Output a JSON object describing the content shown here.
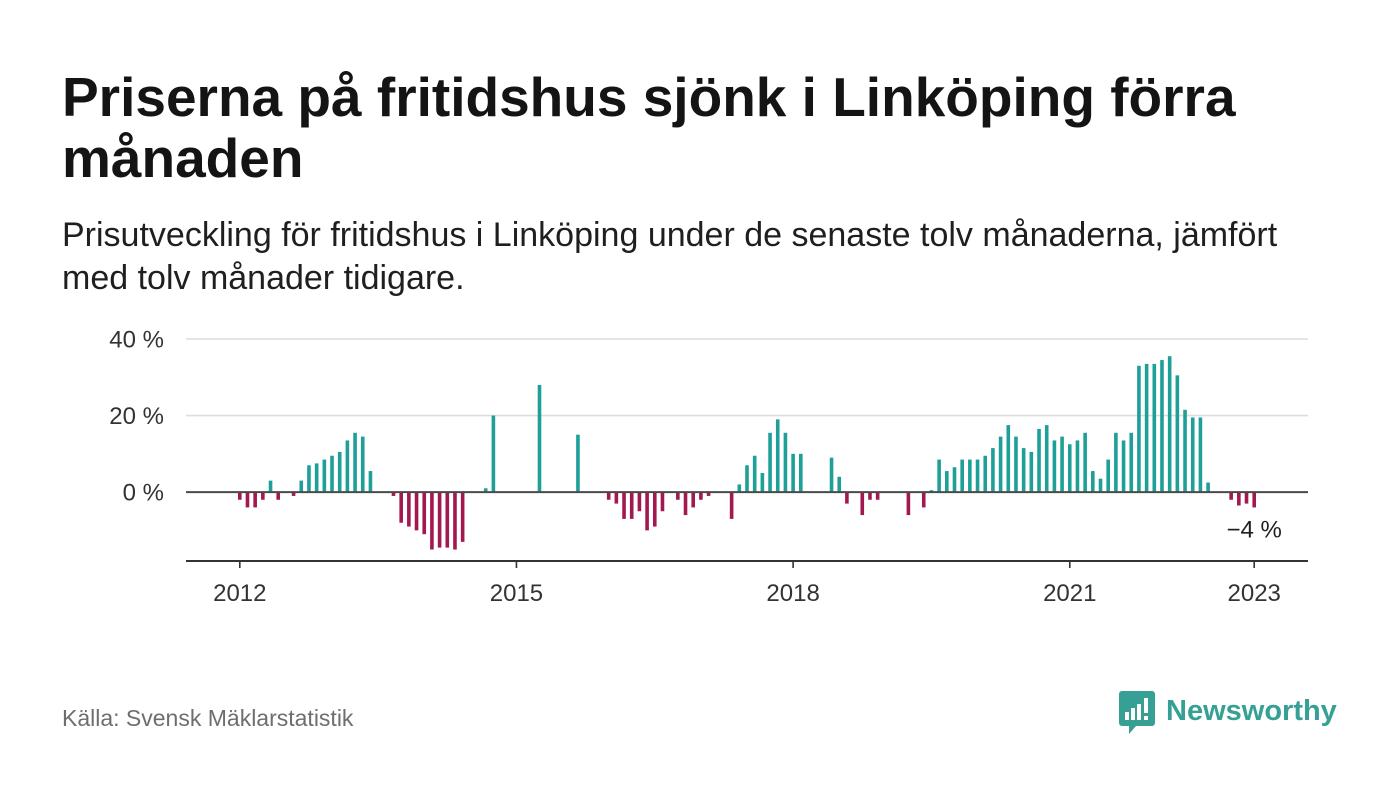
{
  "chart_data": {
    "type": "bar",
    "title": "Priserna på fritidshus sjönk i Linköping förra månaden",
    "subtitle": "Prisutveckling för fritidshus i Linköping under de senaste tolv månaderna, jämfört med tolv månader tidigare.",
    "source": "Källa: Svensk Mäklarstatistik",
    "xlim": [
      "2011-06",
      "2023-08"
    ],
    "ylim": [
      -18,
      40
    ],
    "grid": "horizontal",
    "legend": "none",
    "x_ticks": [
      {
        "x": "2012-01",
        "label": "2012"
      },
      {
        "x": "2015-01",
        "label": "2015"
      },
      {
        "x": "2018-01",
        "label": "2018"
      },
      {
        "x": "2021-01",
        "label": "2021"
      },
      {
        "x": "2023-01",
        "label": "2023"
      }
    ],
    "y_ticks": [
      {
        "y": 0,
        "label": "0 %"
      },
      {
        "y": 20,
        "label": "20 %"
      },
      {
        "y": 40,
        "label": "40 %"
      }
    ],
    "series": [
      {
        "x": [
          "2012-01",
          "2012-02",
          "2012-03",
          "2012-04",
          "2012-05",
          "2012-06",
          "2012-08",
          "2012-09",
          "2012-10",
          "2012-11",
          "2012-12",
          "2013-01",
          "2013-02",
          "2013-03",
          "2013-04",
          "2013-05",
          "2013-06",
          "2013-09",
          "2013-10",
          "2013-11",
          "2013-12",
          "2014-01",
          "2014-02",
          "2014-03",
          "2014-04",
          "2014-05",
          "2014-06",
          "2014-09",
          "2014-10",
          "2015-04",
          "2015-09",
          "2016-01",
          "2016-02",
          "2016-03",
          "2016-04",
          "2016-05",
          "2016-06",
          "2016-07",
          "2016-08",
          "2016-10",
          "2016-11",
          "2016-12",
          "2017-01",
          "2017-02",
          "2017-05",
          "2017-06",
          "2017-07",
          "2017-08",
          "2017-09",
          "2017-10",
          "2017-11",
          "2017-12",
          "2018-01",
          "2018-02",
          "2018-06",
          "2018-07",
          "2018-08",
          "2018-10",
          "2018-11",
          "2018-12",
          "2019-04",
          "2019-06",
          "2019-07",
          "2019-08",
          "2019-09",
          "2019-10",
          "2019-11",
          "2019-12",
          "2020-01",
          "2020-02",
          "2020-03",
          "2020-04",
          "2020-05",
          "2020-06",
          "2020-07",
          "2020-08",
          "2020-09",
          "2020-10",
          "2020-11",
          "2020-12",
          "2021-01",
          "2021-02",
          "2021-03",
          "2021-04",
          "2021-05",
          "2021-06",
          "2021-07",
          "2021-08",
          "2021-09",
          "2021-10",
          "2021-11",
          "2021-12",
          "2022-01",
          "2022-02",
          "2022-03",
          "2022-04",
          "2022-05",
          "2022-06",
          "2022-07",
          "2022-10",
          "2022-11",
          "2022-12",
          "2023-01"
        ],
        "values": [
          -2,
          -4,
          -4,
          -2,
          3,
          -2,
          -1,
          3,
          7,
          7.5,
          8.5,
          9.5,
          10.5,
          13.5,
          15.5,
          14.5,
          5.5,
          -1,
          -8,
          -9,
          -10,
          -11,
          -15,
          -14.5,
          -14.5,
          -15,
          -13,
          1,
          20,
          28,
          15,
          -2,
          -3,
          -7,
          -7,
          -5,
          -10,
          -9,
          -5,
          -2,
          -6,
          -4,
          -2,
          -1,
          -7,
          2,
          7,
          9.5,
          5,
          15.5,
          19,
          15.5,
          10,
          10,
          9,
          4,
          -3,
          -6,
          -2,
          -2,
          -6,
          -4,
          0.5,
          8.5,
          5.5,
          6.5,
          8.5,
          8.5,
          8.5,
          9.5,
          11.5,
          14.5,
          17.5,
          14.5,
          11.5,
          10.5,
          16.5,
          17.5,
          13.5,
          14.5,
          12.5,
          13.5,
          15.5,
          5.5,
          3.5,
          8.5,
          15.5,
          13.5,
          15.5,
          33,
          33.5,
          33.5,
          34.5,
          35.5,
          30.5,
          21.5,
          19.5,
          19.5,
          2.5,
          -2,
          -3.5,
          -3,
          -4
        ]
      }
    ],
    "annotations": [
      {
        "x": "2023-01",
        "y": -4,
        "text": "−4 %"
      }
    ],
    "colors": {
      "positive": "#1e9f98",
      "negative": "#a31850"
    }
  },
  "logo": {
    "text": "Newsworthy",
    "icon": "newsworthy-logo-icon"
  },
  "colors": {
    "logo": "#35a093"
  }
}
